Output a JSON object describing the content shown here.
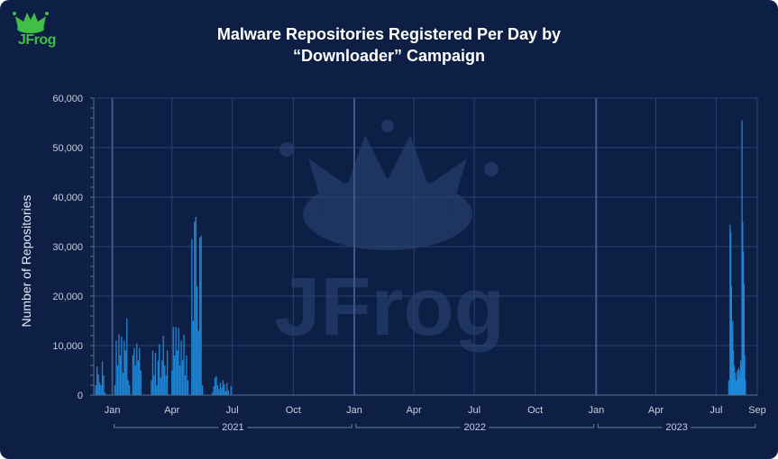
{
  "header": {
    "title_line1": "Malware Repositories Registered Per Day by",
    "title_line2": "“Downloader” Campaign"
  },
  "logo": {
    "text": "JFrog",
    "icon": "frog-crown-icon",
    "color": "#40be46"
  },
  "watermark": {
    "text": "JFrog",
    "icon": "frog-crown-icon"
  },
  "colors": {
    "background": "#0d1f44",
    "bar": "#1e88d8",
    "grid": "#2a4270",
    "year_divider": "#3d5a8a"
  },
  "chart_data": {
    "type": "bar",
    "title": "",
    "xlabel": "",
    "ylabel": "Number of Repositories",
    "ylim": [
      0,
      60000
    ],
    "y_ticks": [
      0,
      10000,
      20000,
      30000,
      40000,
      50000,
      60000
    ],
    "y_tick_labels": [
      "0",
      "10,000",
      "20,000",
      "30,000",
      "40,000",
      "50,000",
      "60,000"
    ],
    "x_range": [
      "2020-12-04",
      "2023-09-01"
    ],
    "x_ticks": [
      {
        "date": "2021-01-01",
        "label": "Jan"
      },
      {
        "date": "2021-04-01",
        "label": "Apr"
      },
      {
        "date": "2021-07-01",
        "label": "Jul"
      },
      {
        "date": "2021-10-01",
        "label": "Oct"
      },
      {
        "date": "2022-01-01",
        "label": "Jan"
      },
      {
        "date": "2022-04-01",
        "label": "Apr"
      },
      {
        "date": "2022-07-01",
        "label": "Jul"
      },
      {
        "date": "2022-10-01",
        "label": "Oct"
      },
      {
        "date": "2023-01-01",
        "label": "Jan"
      },
      {
        "date": "2023-04-01",
        "label": "Apr"
      },
      {
        "date": "2023-07-01",
        "label": "Jul"
      },
      {
        "date": "2023-09-01",
        "label": "Sep"
      }
    ],
    "year_groups": [
      {
        "label": "2021",
        "start": "2021-01-01",
        "end": "2021-12-31"
      },
      {
        "label": "2022",
        "start": "2022-01-01",
        "end": "2022-12-31"
      },
      {
        "label": "2023",
        "start": "2023-01-01",
        "end": "2023-09-01"
      }
    ],
    "grid": true,
    "series": [
      {
        "values": [
          [
            "2020-12-07",
            2000
          ],
          [
            "2020-12-09",
            5800
          ],
          [
            "2020-12-11",
            4200
          ],
          [
            "2020-12-13",
            2500
          ],
          [
            "2020-12-15",
            2000
          ],
          [
            "2020-12-17",
            6800
          ],
          [
            "2020-12-19",
            4000
          ],
          [
            "2020-12-21",
            500
          ],
          [
            "2021-01-05",
            2000
          ],
          [
            "2021-01-07",
            11000
          ],
          [
            "2021-01-09",
            6000
          ],
          [
            "2021-01-11",
            12300
          ],
          [
            "2021-01-13",
            8000
          ],
          [
            "2021-01-15",
            11800
          ],
          [
            "2021-01-17",
            4500
          ],
          [
            "2021-01-19",
            11000
          ],
          [
            "2021-01-21",
            9000
          ],
          [
            "2021-01-23",
            15500
          ],
          [
            "2021-01-25",
            3000
          ],
          [
            "2021-01-27",
            2000
          ],
          [
            "2021-02-01",
            8000
          ],
          [
            "2021-02-03",
            9500
          ],
          [
            "2021-02-05",
            6000
          ],
          [
            "2021-02-07",
            10500
          ],
          [
            "2021-02-09",
            7000
          ],
          [
            "2021-02-11",
            9500
          ],
          [
            "2021-02-13",
            5000
          ],
          [
            "2021-03-01",
            3000
          ],
          [
            "2021-03-03",
            9000
          ],
          [
            "2021-03-05",
            4000
          ],
          [
            "2021-03-07",
            8500
          ],
          [
            "2021-03-09",
            2000
          ],
          [
            "2021-03-11",
            7000
          ],
          [
            "2021-03-13",
            10300
          ],
          [
            "2021-03-15",
            3500
          ],
          [
            "2021-03-17",
            7000
          ],
          [
            "2021-03-19",
            12000
          ],
          [
            "2021-03-21",
            6000
          ],
          [
            "2021-03-23",
            4000
          ],
          [
            "2021-03-25",
            9000
          ],
          [
            "2021-04-01",
            5000
          ],
          [
            "2021-04-03",
            13800
          ],
          [
            "2021-04-05",
            8000
          ],
          [
            "2021-04-07",
            13800
          ],
          [
            "2021-04-09",
            9000
          ],
          [
            "2021-04-11",
            13600
          ],
          [
            "2021-04-13",
            6000
          ],
          [
            "2021-04-15",
            11000
          ],
          [
            "2021-04-17",
            7000
          ],
          [
            "2021-04-19",
            12200
          ],
          [
            "2021-04-21",
            4000
          ],
          [
            "2021-04-23",
            8000
          ],
          [
            "2021-04-25",
            3000
          ],
          [
            "2021-05-01",
            31500
          ],
          [
            "2021-05-03",
            15000
          ],
          [
            "2021-05-05",
            35000
          ],
          [
            "2021-05-07",
            36000
          ],
          [
            "2021-05-09",
            22000
          ],
          [
            "2021-05-11",
            13000
          ],
          [
            "2021-05-13",
            31800
          ],
          [
            "2021-05-15",
            32200
          ],
          [
            "2021-05-17",
            2000
          ],
          [
            "2021-06-01",
            500
          ],
          [
            "2021-06-03",
            1800
          ],
          [
            "2021-06-05",
            3500
          ],
          [
            "2021-06-07",
            3800
          ],
          [
            "2021-06-09",
            2000
          ],
          [
            "2021-06-11",
            1200
          ],
          [
            "2021-06-13",
            2500
          ],
          [
            "2021-06-15",
            1500
          ],
          [
            "2021-06-17",
            3000
          ],
          [
            "2021-06-19",
            2200
          ],
          [
            "2021-06-21",
            800
          ],
          [
            "2021-06-23",
            2500
          ],
          [
            "2021-06-25",
            1000
          ],
          [
            "2021-06-29",
            1800
          ],
          [
            "2023-07-20",
            3000
          ],
          [
            "2023-07-22",
            34500
          ],
          [
            "2023-07-23",
            33000
          ],
          [
            "2023-07-24",
            22000
          ],
          [
            "2023-07-25",
            13000
          ],
          [
            "2023-07-26",
            15000
          ],
          [
            "2023-07-27",
            9000
          ],
          [
            "2023-07-28",
            6000
          ],
          [
            "2023-07-29",
            3500
          ],
          [
            "2023-07-30",
            4500
          ],
          [
            "2023-07-31",
            2500
          ],
          [
            "2023-08-01",
            3000
          ],
          [
            "2023-08-02",
            5000
          ],
          [
            "2023-08-03",
            4000
          ],
          [
            "2023-08-04",
            5500
          ],
          [
            "2023-08-05",
            3500
          ],
          [
            "2023-08-06",
            5000
          ],
          [
            "2023-08-07",
            7000
          ],
          [
            "2023-08-08",
            6000
          ],
          [
            "2023-08-09",
            55500
          ],
          [
            "2023-08-10",
            35000
          ],
          [
            "2023-08-11",
            29000
          ],
          [
            "2023-08-12",
            22500
          ],
          [
            "2023-08-13",
            8000
          ],
          [
            "2023-08-14",
            3000
          ]
        ]
      }
    ]
  }
}
